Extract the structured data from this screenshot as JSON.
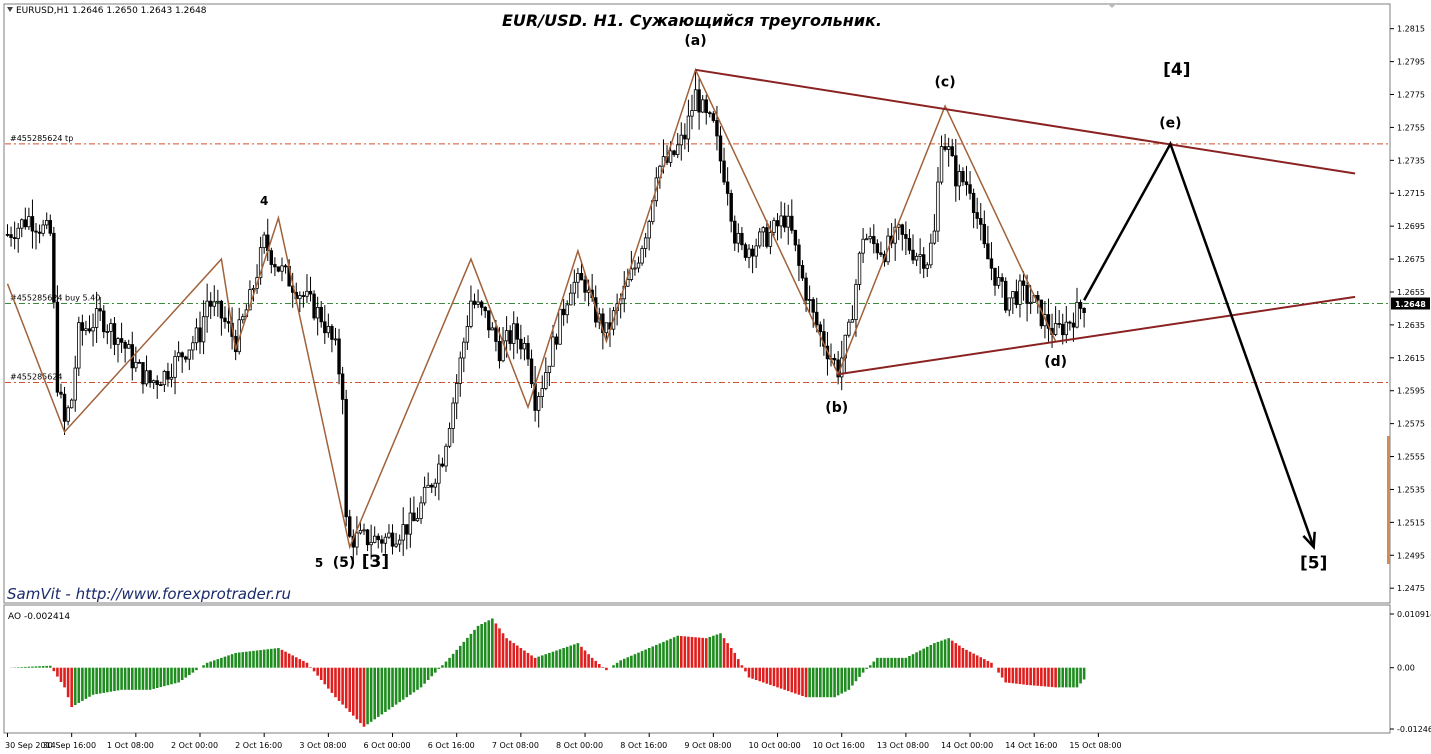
{
  "header": {
    "symbol_info": "EURUSD,H1  1.2646 1.2650 1.2643 1.2648",
    "title": "EUR/USD. H1. Сужающийся треугольник.",
    "watermark": "SamVit - http://www.forexprotrader.ru",
    "ao_label": "AO -0.002414"
  },
  "order_lines": [
    {
      "label": "#455285624 tp",
      "price": 1.2745,
      "color": "#d4502a"
    },
    {
      "label": "#455285624 buy 5.40",
      "price": 1.2648,
      "color": "#3a8a3a"
    },
    {
      "label": "#455285624",
      "price": 1.26,
      "color": "#d4502a"
    }
  ],
  "price_axis": {
    "ticks": [
      "1.2815",
      "1.2795",
      "1.2775",
      "1.2755",
      "1.2735",
      "1.2715",
      "1.2695",
      "1.2675",
      "1.2655",
      "1.2635",
      "1.2615",
      "1.2595",
      "1.2575",
      "1.2555",
      "1.2535",
      "1.2515",
      "1.2495",
      "1.2475"
    ],
    "current_price": "1.2648",
    "ylim": [
      1.2466,
      1.283
    ]
  },
  "ao_axis": {
    "ticks": [
      "0.010914",
      "0.00",
      "-0.01246"
    ]
  },
  "time_axis": {
    "ticks": [
      "30 Sep 2014",
      "30 Sep 16:00",
      "1 Oct 08:00",
      "2 Oct 00:00",
      "2 Oct 16:00",
      "3 Oct 08:00",
      "6 Oct 00:00",
      "6 Oct 16:00",
      "7 Oct 08:00",
      "8 Oct 00:00",
      "8 Oct 16:00",
      "9 Oct 08:00",
      "10 Oct 00:00",
      "10 Oct 16:00",
      "13 Oct 08:00",
      "14 Oct 00:00",
      "14 Oct 16:00",
      "15 Oct 08:00"
    ]
  },
  "wave_labels": [
    {
      "text": "4",
      "x": 36,
      "y": 1.2708
    },
    {
      "text": "5",
      "x": 43.7,
      "y": 1.2488
    },
    {
      "text": "(5)",
      "x": 47.2,
      "y": 1.2488
    },
    {
      "text": "[3]",
      "x": 51.6,
      "y": 1.2488
    },
    {
      "text": "(a)",
      "x": 96.5,
      "y": 1.2805
    },
    {
      "text": "(b)",
      "x": 116.3,
      "y": 1.2582
    },
    {
      "text": "(c)",
      "x": 131.5,
      "y": 1.278
    },
    {
      "text": "(d)",
      "x": 147,
      "y": 1.261
    },
    {
      "text": "[4]",
      "x": 164,
      "y": 1.2787
    },
    {
      "text": "(e)",
      "x": 163.1,
      "y": 1.2755
    },
    {
      "text": "[5]",
      "x": 183.2,
      "y": 1.2487
    }
  ],
  "colors": {
    "bull_bar": "#1a1a1a",
    "zigzag": "#a0623a",
    "triangle": "#8b2222",
    "projection": "#000000",
    "ao_up": "#1e8c1e",
    "ao_down": "#e01e1e"
  },
  "chart_data": [
    {
      "type": "line",
      "title": "EUR/USD. H1. Сужающийся треугольник.",
      "subtype": "candlestick with Elliott wave annotation",
      "x_unit": "H1 bar index",
      "time_ticks_bar_index": [
        0,
        9,
        18,
        27,
        36,
        45,
        54,
        63,
        72,
        81,
        90,
        99,
        108,
        117,
        126,
        135,
        144,
        153
      ],
      "ylim": [
        1.2466,
        1.283
      ],
      "close_anchors": [
        [
          0,
          1.269
        ],
        [
          3,
          1.27
        ],
        [
          6,
          1.269
        ],
        [
          7,
          1.26
        ],
        [
          8,
          1.2575
        ],
        [
          9,
          1.259
        ],
        [
          10,
          1.263
        ],
        [
          13,
          1.264
        ],
        [
          16,
          1.2625
        ],
        [
          18,
          1.261
        ],
        [
          20,
          1.26
        ],
        [
          22,
          1.2605
        ],
        [
          24,
          1.2615
        ],
        [
          27,
          1.263
        ],
        [
          28,
          1.265
        ],
        [
          30,
          1.264
        ],
        [
          32,
          1.2625
        ],
        [
          34,
          1.265
        ],
        [
          36,
          1.2685
        ],
        [
          38,
          1.267
        ],
        [
          40,
          1.266
        ],
        [
          42,
          1.265
        ],
        [
          44,
          1.264
        ],
        [
          46,
          1.262
        ],
        [
          47,
          1.2595
        ],
        [
          47.5,
          1.2515
        ],
        [
          48,
          1.2505
        ],
        [
          50,
          1.2505
        ],
        [
          53,
          1.2505
        ],
        [
          55,
          1.251
        ],
        [
          57,
          1.2515
        ],
        [
          59,
          1.2535
        ],
        [
          61,
          1.2555
        ],
        [
          63,
          1.26
        ],
        [
          65,
          1.265
        ],
        [
          67,
          1.264
        ],
        [
          69,
          1.262
        ],
        [
          71,
          1.263
        ],
        [
          73,
          1.262
        ],
        [
          74,
          1.259
        ],
        [
          75,
          1.26
        ],
        [
          77,
          1.263
        ],
        [
          79,
          1.266
        ],
        [
          81,
          1.266
        ],
        [
          82,
          1.2645
        ],
        [
          84,
          1.263
        ],
        [
          86,
          1.265
        ],
        [
          88,
          1.267
        ],
        [
          90,
          1.27
        ],
        [
          91,
          1.273
        ],
        [
          93,
          1.2735
        ],
        [
          95,
          1.275
        ],
        [
          96.5,
          1.2775
        ],
        [
          98,
          1.276
        ],
        [
          99,
          1.2755
        ],
        [
          100,
          1.2735
        ],
        [
          101,
          1.272
        ],
        [
          102,
          1.269
        ],
        [
          103,
          1.268
        ],
        [
          105,
          1.2685
        ],
        [
          107,
          1.269
        ],
        [
          109,
          1.27
        ],
        [
          110,
          1.269
        ],
        [
          111,
          1.267
        ],
        [
          112,
          1.2655
        ],
        [
          113,
          1.264
        ],
        [
          115,
          1.262
        ],
        [
          116.5,
          1.2608
        ],
        [
          118,
          1.263
        ],
        [
          119,
          1.266
        ],
        [
          120,
          1.269
        ],
        [
          121,
          1.2685
        ],
        [
          123,
          1.268
        ],
        [
          125,
          1.269
        ],
        [
          127,
          1.268
        ],
        [
          129,
          1.2675
        ],
        [
          130,
          1.269
        ],
        [
          131,
          1.275
        ],
        [
          132,
          1.274
        ],
        [
          133,
          1.2725
        ],
        [
          135,
          1.272
        ],
        [
          136,
          1.27
        ],
        [
          137,
          1.268
        ],
        [
          139,
          1.266
        ],
        [
          140,
          1.265
        ],
        [
          142,
          1.2655
        ],
        [
          144,
          1.2648
        ],
        [
          145,
          1.264
        ],
        [
          146,
          1.2635
        ],
        [
          147,
          1.263
        ],
        [
          149,
          1.2638
        ],
        [
          151,
          1.2648
        ]
      ],
      "zigzag_points": [
        [
          0,
          1.266
        ],
        [
          8,
          1.257
        ],
        [
          30,
          1.2675
        ],
        [
          32,
          1.262
        ],
        [
          38,
          1.27
        ],
        [
          48,
          1.25
        ],
        [
          65,
          1.2675
        ],
        [
          73,
          1.2585
        ],
        [
          80,
          1.268
        ],
        [
          84,
          1.2625
        ],
        [
          96.5,
          1.279
        ],
        [
          116.5,
          1.2605
        ],
        [
          131.5,
          1.2768
        ],
        [
          147,
          1.2625
        ]
      ],
      "triangle_upper": [
        [
          96.5,
          1.279
        ],
        [
          189,
          1.2727
        ]
      ],
      "triangle_lower": [
        [
          116.5,
          1.2605
        ],
        [
          189,
          1.2652
        ]
      ],
      "projection": [
        [
          151,
          1.265
        ],
        [
          163.1,
          1.2745
        ],
        [
          183.2,
          1.25
        ]
      ],
      "ao_anchors": [
        [
          0,
          0.0
        ],
        [
          6,
          0.0004
        ],
        [
          8,
          -0.004
        ],
        [
          9,
          -0.008
        ],
        [
          12,
          -0.0055
        ],
        [
          16,
          -0.0045
        ],
        [
          20,
          -0.0045
        ],
        [
          24,
          -0.003
        ],
        [
          28,
          0.001
        ],
        [
          32,
          0.003
        ],
        [
          38,
          0.004
        ],
        [
          42,
          0.001
        ],
        [
          46,
          -0.006
        ],
        [
          50,
          -0.012
        ],
        [
          54,
          -0.008
        ],
        [
          58,
          -0.004
        ],
        [
          62,
          0.002
        ],
        [
          66,
          0.0085
        ],
        [
          68,
          0.01
        ],
        [
          70,
          0.006
        ],
        [
          74,
          0.002
        ],
        [
          78,
          0.004
        ],
        [
          80,
          0.005
        ],
        [
          82,
          0.002
        ],
        [
          84,
          -0.0005
        ],
        [
          86,
          0.0015
        ],
        [
          90,
          0.004
        ],
        [
          94,
          0.0065
        ],
        [
          98,
          0.006
        ],
        [
          100,
          0.007
        ],
        [
          102,
          0.003
        ],
        [
          104,
          -0.002
        ],
        [
          108,
          -0.004
        ],
        [
          112,
          -0.006
        ],
        [
          116,
          -0.006
        ],
        [
          118,
          -0.0045
        ],
        [
          120,
          -0.001
        ],
        [
          122,
          0.002
        ],
        [
          126,
          0.002
        ],
        [
          130,
          0.005
        ],
        [
          132,
          0.006
        ],
        [
          134,
          0.004
        ],
        [
          138,
          0.001
        ],
        [
          140,
          -0.003
        ],
        [
          143,
          -0.0035
        ],
        [
          147,
          -0.004
        ],
        [
          150,
          -0.004
        ],
        [
          151,
          -0.0024
        ]
      ],
      "ao_ylim": [
        -0.01246,
        0.010914
      ]
    }
  ]
}
